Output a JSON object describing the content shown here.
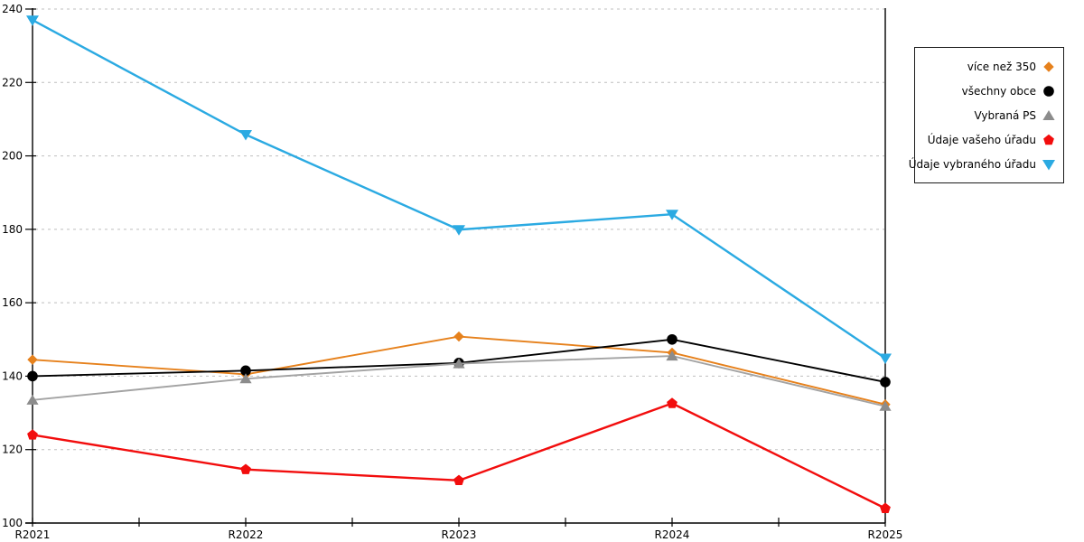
{
  "chart_data": {
    "type": "line",
    "title": "",
    "xlabel": "",
    "ylabel": "",
    "categories": [
      "R2021",
      "R2022",
      "R2023",
      "R2024",
      "R2025"
    ],
    "series": [
      {
        "name": "více než 350",
        "color": "#E6811C",
        "marker": "diamond",
        "values": [
          144.5,
          140.5,
          150.8,
          146.4,
          132.3
        ]
      },
      {
        "name": "všechny obce",
        "color": "#000000",
        "marker": "circle",
        "values": [
          140.0,
          141.5,
          143.6,
          150.0,
          138.4
        ]
      },
      {
        "name": "Vybraná PS",
        "color": "#A3A3A3",
        "marker": "triangle-up",
        "marker_color": "#8C8C8C",
        "values": [
          133.5,
          139.3,
          143.4,
          145.5,
          131.8
        ]
      },
      {
        "name": "Údaje vašeho úřadu",
        "color": "#F20D0D",
        "marker": "pentagon",
        "values": [
          124.0,
          114.6,
          111.6,
          132.6,
          104.0
        ]
      },
      {
        "name": "Údaje vybraného úřadu",
        "color": "#2BAAE2",
        "marker": "triangle-down",
        "values": [
          237.0,
          205.8,
          179.9,
          184.1,
          144.9
        ]
      }
    ],
    "ylim": [
      100,
      240
    ],
    "ytick_labels": [
      "100",
      "120",
      "140",
      "160",
      "180",
      "200",
      "220",
      "240"
    ],
    "grid": "horizontal-dashed",
    "grid_color": "#BFBFBF",
    "axis_color": "#000000",
    "legend_position": "right-outside",
    "legend_border_color": "#1a1a1a"
  }
}
